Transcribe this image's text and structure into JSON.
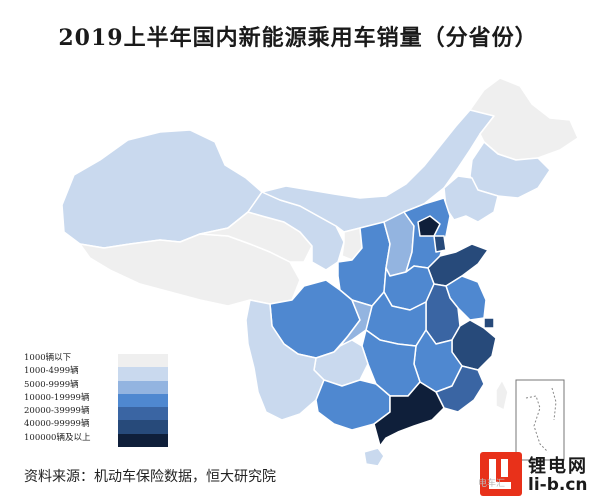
{
  "title": "2019上半年国内新能源乘用车销量（分省份）",
  "legend": [
    {
      "label": "1000辆以下",
      "color": "#efefef"
    },
    {
      "label": "1000-4999辆",
      "color": "#c9d9ee"
    },
    {
      "label": "5000-9999辆",
      "color": "#93b4e0"
    },
    {
      "label": "10000-19999辆",
      "color": "#4f88d0"
    },
    {
      "label": "20000-39999辆",
      "color": "#3a65a3"
    },
    {
      "label": "40000-99999辆",
      "color": "#274a7a"
    },
    {
      "label": "100000辆及以上",
      "color": "#0f1f3a"
    }
  ],
  "source": "资料来源：机动车保险数据，恒大研究院",
  "logo": {
    "cn": "锂电网",
    "en": "li-b.cn"
  },
  "watermark": "电车汇"
}
